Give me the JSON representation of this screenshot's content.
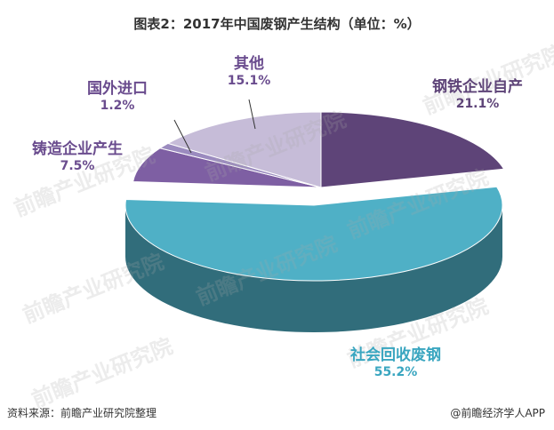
{
  "title": "图表2：2017年中国废钢产生结构（单位：%）",
  "chart_data": {
    "type": "pie",
    "title": "图表2：2017年中国废钢产生结构（单位：%）",
    "unit": "%",
    "slices": [
      {
        "label": "钢铁企业自产",
        "value": 21.1,
        "value_label": "21.1%",
        "color": "#5e4478",
        "label_color": "#5e4478"
      },
      {
        "label": "社会回收废钢",
        "value": 55.2,
        "value_label": "55.2%",
        "color": "#4fb0c6",
        "label_color": "#3aa6c0"
      },
      {
        "label": "铸造企业产生",
        "value": 7.5,
        "value_label": "7.5%",
        "color": "#7e5fa3",
        "label_color": "#6a4c8e"
      },
      {
        "label": "国外进口",
        "value": 1.2,
        "value_label": "1.2%",
        "color": "#9b8bbf",
        "label_color": "#6a4c8e"
      },
      {
        "label": "其他",
        "value": 15.1,
        "value_label": "15.1%",
        "color": "#c6bcd8",
        "label_color": "#6a4c8e"
      }
    ]
  },
  "watermark": "前瞻产业研究院",
  "footer": {
    "source": "资料来源：前瞻产业研究院整理",
    "credit": "@前瞻经济学人APP"
  }
}
